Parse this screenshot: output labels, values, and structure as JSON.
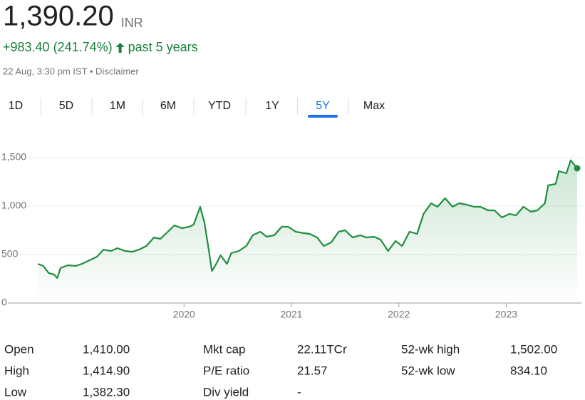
{
  "header": {
    "price": "1,390.20",
    "currency": "INR",
    "change": "+983.40 (241.74%)",
    "period": "past 5 years",
    "timestamp": "22 Aug, 3:30 pm IST • Disclaimer"
  },
  "tabs": {
    "labels": [
      "1D",
      "5D",
      "1M",
      "6M",
      "YTD",
      "1Y",
      "5Y",
      "Max"
    ],
    "active": 6
  },
  "chart_data": {
    "type": "line",
    "color": "#1e8e3e",
    "grid": true,
    "x": [
      2018.64,
      2018.69,
      2018.74,
      2018.79,
      2018.82,
      2018.85,
      2018.92,
      2018.99,
      2019.05,
      2019.12,
      2019.19,
      2019.25,
      2019.32,
      2019.38,
      2019.45,
      2019.52,
      2019.58,
      2019.65,
      2019.72,
      2019.78,
      2019.85,
      2019.91,
      2019.98,
      2020.05,
      2020.09,
      2020.15,
      2020.19,
      2020.23,
      2020.26,
      2020.3,
      2020.34,
      2020.4,
      2020.44,
      2020.51,
      2020.58,
      2020.64,
      2020.71,
      2020.77,
      2020.84,
      2020.91,
      2020.97,
      2021.04,
      2021.11,
      2021.17,
      2021.24,
      2021.3,
      2021.37,
      2021.44,
      2021.5,
      2021.57,
      2021.64,
      2021.7,
      2021.77,
      2021.83,
      2021.9,
      2021.97,
      2022.03,
      2022.1,
      2022.17,
      2022.23,
      2022.3,
      2022.36,
      2022.43,
      2022.5,
      2022.56,
      2022.63,
      2022.7,
      2022.76,
      2022.83,
      2022.89,
      2022.96,
      2023.03,
      2023.09,
      2023.16,
      2023.23,
      2023.29,
      2023.36,
      2023.39,
      2023.46,
      2023.49,
      2023.56,
      2023.6,
      2023.66
    ],
    "values": [
      404,
      382,
      309,
      294,
      257,
      360,
      390,
      382,
      404,
      441,
      478,
      551,
      537,
      566,
      537,
      529,
      551,
      588,
      676,
      662,
      735,
      801,
      772,
      787,
      809,
      993,
      831,
      551,
      331,
      404,
      493,
      404,
      515,
      537,
      588,
      699,
      735,
      684,
      699,
      787,
      787,
      735,
      721,
      713,
      676,
      588,
      625,
      735,
      750,
      676,
      699,
      676,
      684,
      654,
      537,
      640,
      588,
      735,
      713,
      919,
      1029,
      993,
      1081,
      993,
      1029,
      1015,
      993,
      993,
      956,
      956,
      882,
      919,
      904,
      993,
      941,
      956,
      1029,
      1213,
      1228,
      1360,
      1338,
      1471,
      1390
    ],
    "xlim": [
      2018.34,
      2023.7
    ],
    "xticks": [
      2020,
      2021,
      2022,
      2023
    ],
    "ylim": [
      0,
      1650
    ],
    "yticks": [
      0,
      500,
      {
        "value": 1000,
        "label": "1,000"
      },
      {
        "value": 1500,
        "label": "1,500"
      }
    ]
  },
  "stats": [
    [
      "Open",
      "1,410.00",
      "Mkt cap",
      "22.11TCr",
      "52-wk high",
      "1,502.00"
    ],
    [
      "High",
      "1,414.90",
      "P/E ratio",
      "21.57",
      "52-wk low",
      "834.10"
    ],
    [
      "Low",
      "1,382.30",
      "Div yield",
      "-"
    ]
  ]
}
